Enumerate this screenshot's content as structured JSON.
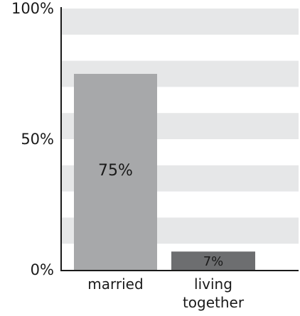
{
  "chart_data": {
    "type": "bar",
    "categories": [
      "married",
      "living together"
    ],
    "category_lines": [
      [
        "married"
      ],
      [
        "living",
        "together"
      ]
    ],
    "values": [
      75,
      7
    ],
    "data_labels": [
      "75%",
      "7%"
    ],
    "ylim": [
      0,
      100
    ],
    "yticks": [
      0,
      50,
      100
    ],
    "ytick_labels": [
      "0%",
      "50%",
      "100%"
    ],
    "bar_colors": [
      "#a7a8aa",
      "#6d6e70"
    ],
    "grid": "horizontal bands",
    "band_color": "#e6e7e8",
    "axis_color": "#1a1a1a",
    "title": "",
    "xlabel": "",
    "ylabel": ""
  }
}
